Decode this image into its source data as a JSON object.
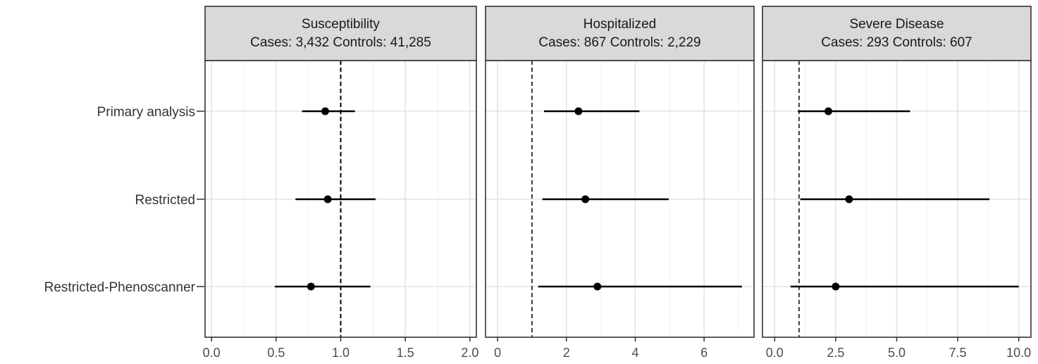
{
  "chart_data": {
    "type": "forest",
    "categories": [
      "Primary analysis",
      "Restricted",
      "Restricted-Phenoscanner"
    ],
    "grid": true,
    "legend": "none",
    "panels": [
      {
        "title": "Susceptibility",
        "subtitle": "Cases: 3,432 Controls: 41,285",
        "xlim": [
          -0.05,
          2.05
        ],
        "ticks": [
          0.0,
          0.5,
          1.0,
          1.5,
          2.0
        ],
        "tick_labels": [
          "0.0",
          "0.5",
          "1.0",
          "1.5",
          "2.0"
        ],
        "reference_line": 1.0,
        "estimates": [
          {
            "category": "Primary analysis",
            "est": 0.88,
            "lo": 0.7,
            "hi": 1.11
          },
          {
            "category": "Restricted",
            "est": 0.9,
            "lo": 0.65,
            "hi": 1.27
          },
          {
            "category": "Restricted-Phenoscanner",
            "est": 0.77,
            "lo": 0.49,
            "hi": 1.23
          }
        ]
      },
      {
        "title": "Hospitalized",
        "subtitle": "Cases: 867 Controls: 2,229",
        "xlim": [
          -0.35,
          7.45
        ],
        "ticks": [
          0,
          2,
          4,
          6
        ],
        "tick_labels": [
          "0",
          "2",
          "4",
          "6"
        ],
        "reference_line": 1.0,
        "estimates": [
          {
            "category": "Primary analysis",
            "est": 2.35,
            "lo": 1.35,
            "hi": 4.12
          },
          {
            "category": "Restricted",
            "est": 2.55,
            "lo": 1.3,
            "hi": 4.97
          },
          {
            "category": "Restricted-Phenoscanner",
            "est": 2.9,
            "lo": 1.18,
            "hi": 7.1
          }
        ]
      },
      {
        "title": "Severe Disease",
        "subtitle": "Cases: 293 Controls: 607",
        "xlim": [
          -0.5,
          10.5
        ],
        "ticks": [
          0.0,
          2.5,
          5.0,
          7.5,
          10.0
        ],
        "tick_labels": [
          "0.0",
          "2.5",
          "5.0",
          "7.5",
          "10.0"
        ],
        "reference_line": 1.0,
        "estimates": [
          {
            "category": "Primary analysis",
            "est": 2.2,
            "lo": 0.95,
            "hi": 5.55
          },
          {
            "category": "Restricted",
            "est": 3.05,
            "lo": 1.05,
            "hi": 8.8
          },
          {
            "category": "Restricted-Phenoscanner",
            "est": 2.5,
            "lo": 0.65,
            "hi": 10.0
          }
        ]
      }
    ]
  }
}
